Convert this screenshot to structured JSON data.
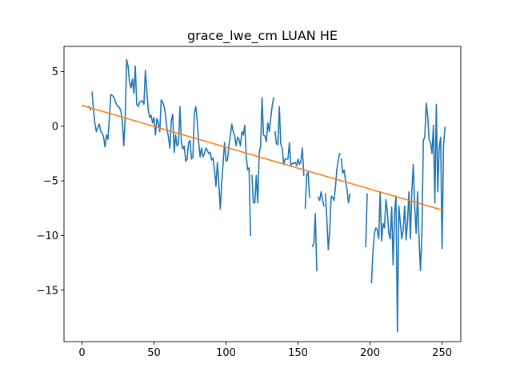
{
  "chart_data": {
    "type": "line",
    "title": "grace_lwe_cm LUAN HE",
    "xlabel": "",
    "ylabel": "",
    "xlim": [
      -12.5,
      263
    ],
    "ylim": [
      -19.7,
      7.3
    ],
    "xticks": [
      0,
      50,
      100,
      150,
      200,
      250
    ],
    "yticks": [
      -15,
      -10,
      -5,
      0,
      5
    ],
    "grid": false,
    "series": [
      {
        "color": "#1f77b4",
        "segments": [
          [
            [
              5,
              1.8
            ],
            [
              6,
              1.5
            ]
          ],
          [
            [
              7,
              3.1
            ],
            [
              8,
              1.5
            ],
            [
              9,
              0.2
            ],
            [
              10,
              -0.5
            ],
            [
              11,
              -0.1
            ],
            [
              12,
              0.2
            ],
            [
              13,
              -0.5
            ],
            [
              14,
              -0.6
            ],
            [
              15,
              -1.0
            ],
            [
              16,
              -1.9
            ],
            [
              17,
              -0.8
            ],
            [
              18,
              -1.2
            ],
            [
              19,
              0.8
            ],
            [
              20,
              2.9
            ],
            [
              21,
              2.8
            ],
            [
              22,
              2.7
            ],
            [
              23,
              2.3
            ],
            [
              24,
              2.0
            ],
            [
              25,
              1.8
            ],
            [
              26,
              1.7
            ],
            [
              27,
              1.4
            ],
            [
              28,
              0.5
            ],
            [
              29,
              -1.8
            ],
            [
              30,
              0.8
            ],
            [
              31,
              6.1
            ],
            [
              32,
              5.5
            ],
            [
              33,
              4.0
            ],
            [
              34,
              3.5
            ],
            [
              35,
              4.3
            ],
            [
              36,
              3.0
            ],
            [
              37,
              5.5
            ],
            [
              38,
              2.0
            ],
            [
              39,
              1.8
            ],
            [
              40,
              2.2
            ],
            [
              41,
              2.3
            ],
            [
              42,
              2.3
            ],
            [
              43,
              2.0
            ],
            [
              44,
              5.1
            ],
            [
              45,
              3.2
            ],
            [
              46,
              1.5
            ],
            [
              47,
              0.8
            ],
            [
              48,
              1.0
            ],
            [
              49,
              0.3
            ],
            [
              50,
              0.8
            ],
            [
              51,
              -0.8
            ],
            [
              52,
              0.7
            ],
            [
              53,
              0.3
            ],
            [
              54,
              -0.5
            ],
            [
              55,
              2.4
            ],
            [
              56,
              2.2
            ],
            [
              57,
              1.8
            ],
            [
              58,
              1.0
            ],
            [
              59,
              -0.2
            ],
            [
              60,
              -1.0
            ],
            [
              61,
              -2.0
            ],
            [
              62,
              0.5
            ],
            [
              63,
              1.1
            ],
            [
              64,
              -2.4
            ],
            [
              65,
              -0.8
            ],
            [
              66,
              -1.8
            ],
            [
              67,
              -1.6
            ],
            [
              68,
              1.8
            ],
            [
              69,
              -1.5
            ],
            [
              70,
              -2.1
            ],
            [
              71,
              -1.8
            ],
            [
              72,
              -3.2
            ],
            [
              73,
              -3.0
            ],
            [
              74,
              -1.5
            ],
            [
              75,
              -1.3
            ],
            [
              76,
              -3.0
            ],
            [
              77,
              -2.8
            ],
            [
              78,
              1.2
            ],
            [
              79,
              1.8
            ],
            [
              80,
              0.5
            ],
            [
              81,
              -1.5
            ],
            [
              82,
              -2.8
            ],
            [
              83,
              -2.0
            ],
            [
              84,
              -2.8
            ],
            [
              85,
              -2.5
            ],
            [
              86,
              -2.0
            ],
            [
              87,
              -2.2
            ],
            [
              88,
              -2.5
            ],
            [
              89,
              -2.4
            ],
            [
              90,
              -3.1
            ],
            [
              91,
              -2.9
            ],
            [
              92,
              -4.0
            ],
            [
              93,
              -5.5
            ],
            [
              94,
              -3.3
            ],
            [
              95,
              -5.2
            ],
            [
              96,
              -7.6
            ],
            [
              97,
              -5.2
            ],
            [
              98,
              -3.3
            ],
            [
              99,
              -1.5
            ],
            [
              100,
              -3.2
            ],
            [
              101,
              -3.1
            ],
            [
              102,
              -1.8
            ],
            [
              103,
              -0.9
            ],
            [
              104,
              0.2
            ],
            [
              105,
              -0.5
            ],
            [
              106,
              -0.9
            ],
            [
              107,
              -1.8
            ],
            [
              108,
              -1.0
            ],
            [
              109,
              -1.2
            ],
            [
              110,
              -1.8
            ],
            [
              111,
              -0.5
            ],
            [
              112,
              -0.8
            ],
            [
              113,
              0.1
            ],
            [
              114,
              -2.7
            ],
            [
              115,
              -4.0
            ],
            [
              116,
              -3.8
            ],
            [
              117,
              -10.0
            ]
          ],
          [
            [
              118,
              -4.5
            ],
            [
              119,
              -7.0
            ],
            [
              120,
              -7.0
            ],
            [
              121,
              -4.5
            ],
            [
              122,
              -7.0
            ],
            [
              123,
              -2.5
            ],
            [
              124,
              -1.8
            ],
            [
              125,
              2.6
            ],
            [
              126,
              -0.8
            ],
            [
              127,
              -0.9
            ],
            [
              128,
              -1.4
            ],
            [
              129,
              0.3
            ],
            [
              130,
              -0.5
            ],
            [
              131,
              0.7
            ],
            [
              132,
              1.8
            ],
            [
              133,
              2.6
            ]
          ],
          [
            [
              134,
              -0.5
            ],
            [
              135,
              -1.6
            ],
            [
              136,
              -1.7
            ],
            [
              137,
              1.8
            ],
            [
              138,
              -1.6
            ],
            [
              139,
              -2.0
            ],
            [
              140,
              -3.5
            ],
            [
              141,
              -3.0
            ],
            [
              142,
              -3.0
            ],
            [
              143,
              -3.0
            ],
            [
              144,
              -1.5
            ],
            [
              145,
              -3.6
            ],
            [
              146,
              -3.4
            ],
            [
              147,
              -3.4
            ],
            [
              148,
              -3.3
            ],
            [
              149,
              -3.6
            ],
            [
              150,
              -3.0
            ],
            [
              151,
              -3.5
            ],
            [
              152,
              -3.2
            ],
            [
              153,
              -2.0
            ],
            [
              154,
              -4.5
            ]
          ],
          [
            [
              155,
              -7.5
            ],
            [
              156,
              -4.5
            ],
            [
              157,
              -4.2
            ],
            [
              158,
              -6.5
            ]
          ],
          [
            [
              160,
              -11.0
            ],
            [
              161,
              -10.7
            ],
            [
              162,
              -8.0
            ],
            [
              163,
              -13.2
            ]
          ],
          [
            [
              164,
              -6.5
            ],
            [
              165,
              -6.8
            ],
            [
              166,
              -6.0
            ],
            [
              167,
              -6.7
            ],
            [
              168,
              -7.3
            ]
          ],
          [
            [
              169,
              -6.2
            ],
            [
              170,
              -8.5
            ],
            [
              171,
              -11.3
            ],
            [
              172,
              -9.5
            ],
            [
              173,
              -6.4
            ],
            [
              174,
              -6.5
            ],
            [
              175,
              -6.8
            ],
            [
              176,
              -5.5
            ],
            [
              177,
              -3.9
            ],
            [
              178,
              -3.0
            ],
            [
              179,
              -2.5
            ]
          ],
          [
            [
              180,
              -3.0
            ],
            [
              181,
              -4.3
            ],
            [
              182,
              -4.0
            ],
            [
              183,
              -5.0
            ],
            [
              184,
              -5.8
            ],
            [
              185,
              -7.0
            ],
            [
              186,
              -6.2
            ]
          ],
          [
            [
              197,
              -11.0
            ],
            [
              198,
              -6.2
            ]
          ],
          [
            [
              201,
              -14.3
            ],
            [
              202,
              -11.5
            ],
            [
              203,
              -9.8
            ],
            [
              204,
              -9.3
            ],
            [
              205,
              -9.5
            ],
            [
              206,
              -10.3
            ],
            [
              207,
              -6.0
            ],
            [
              208,
              -10.5
            ],
            [
              209,
              -8.9
            ],
            [
              210,
              -9.3
            ],
            [
              211,
              -6.7
            ],
            [
              212,
              -7.8
            ],
            [
              213,
              -9.8
            ],
            [
              214,
              -10.3
            ],
            [
              215,
              -7.4
            ],
            [
              216,
              -12.7
            ],
            [
              217,
              -8.0
            ],
            [
              218,
              -6.4
            ],
            [
              219,
              -18.8
            ],
            [
              220,
              -7.3
            ],
            [
              221,
              -8.8
            ],
            [
              222,
              -10.3
            ],
            [
              223,
              -9.5
            ],
            [
              224,
              -7.3
            ],
            [
              225,
              -10.4
            ],
            [
              226,
              -8.7
            ],
            [
              227,
              -6.0
            ],
            [
              228,
              -10.3
            ],
            [
              229,
              -6.0
            ],
            [
              230,
              -3.5
            ],
            [
              231,
              -7.4
            ],
            [
              232,
              -9.8
            ],
            [
              233,
              -6.0
            ],
            [
              234,
              -10.3
            ],
            [
              235,
              -13.2
            ],
            [
              236,
              -9.7
            ],
            [
              237,
              -1.3
            ],
            [
              238,
              -1.0
            ],
            [
              239,
              2.1
            ],
            [
              240,
              1.0
            ],
            [
              241,
              -1.2
            ],
            [
              242,
              -1.5
            ],
            [
              243,
              -2.5
            ],
            [
              244,
              0.1
            ],
            [
              245,
              -7.0
            ],
            [
              246,
              2.0
            ],
            [
              247,
              -6.0
            ],
            [
              248,
              -2.0
            ],
            [
              249,
              -1.0
            ],
            [
              250,
              -11.2
            ],
            [
              251,
              -1.8
            ],
            [
              252,
              -0.1
            ]
          ]
        ]
      },
      {
        "color": "#ff7f0e",
        "segments": [
          [
            [
              0,
              1.9
            ],
            [
              251,
              -7.7
            ]
          ]
        ]
      }
    ]
  }
}
